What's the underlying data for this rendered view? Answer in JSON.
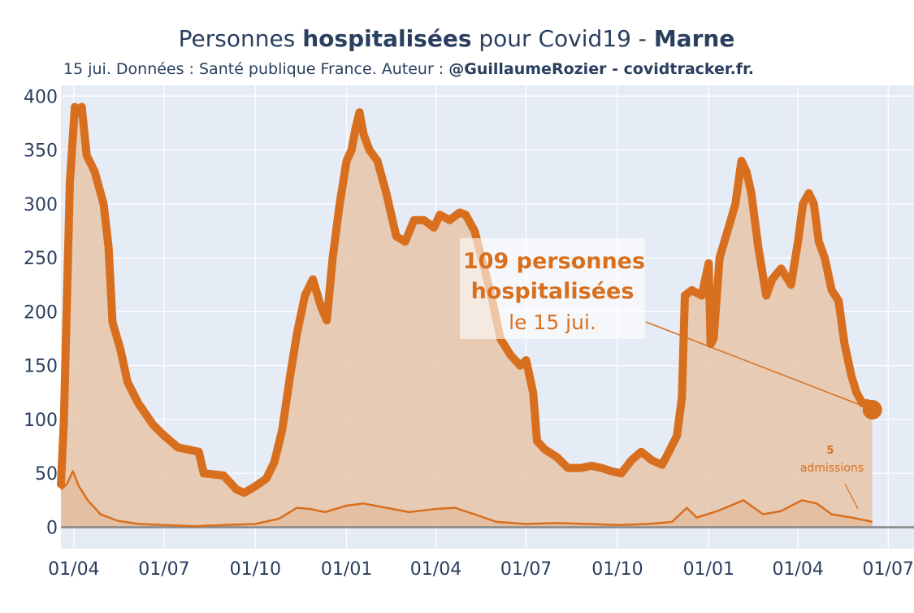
{
  "title": {
    "prefix": "Personnes ",
    "bold": "hospitalisées",
    "middle": " pour Covid19 - ",
    "region": "Marne"
  },
  "subtitle": {
    "text": "15 jui. Données : Santé publique France. Auteur : ",
    "author": "@GuillaumeRozier - covidtracker.fr."
  },
  "colors": {
    "accent": "#d86f1e",
    "fill": "#e8c5a8",
    "plot_bg": "#e5ecf6",
    "grid": "#ffffff",
    "axis_text": "#2a3f5f",
    "annotation_bg": "#ffffff"
  },
  "annotation_main": {
    "line1": "109 personnes",
    "line2": "hospitalisées",
    "line3": "le 15 jui."
  },
  "annotation_small": {
    "line1": "5",
    "line2": "admissions"
  },
  "chart_data": {
    "type": "area",
    "title": "Personnes hospitalisées pour Covid19 - Marne",
    "x_tick_labels": [
      "01/04",
      "01/07",
      "01/10",
      "01/01",
      "01/04",
      "01/07",
      "01/10",
      "01/01",
      "01/04",
      "01/07"
    ],
    "x_tick_dates": [
      "2020-04-01",
      "2020-07-01",
      "2020-10-01",
      "2021-01-01",
      "2021-04-01",
      "2021-07-01",
      "2021-10-01",
      "2022-01-01",
      "2022-04-01",
      "2022-07-01"
    ],
    "xlim": [
      "2020-03-19",
      "2022-07-27"
    ],
    "ylim": [
      -20,
      410
    ],
    "y_ticks": [
      0,
      50,
      100,
      150,
      200,
      250,
      300,
      350,
      400
    ],
    "grid": true,
    "series": [
      {
        "role": "hospitalisations",
        "points": [
          [
            "2020-03-19",
            40
          ],
          [
            "2020-03-22",
            100
          ],
          [
            "2020-03-28",
            320
          ],
          [
            "2020-04-02",
            390
          ],
          [
            "2020-04-05",
            385
          ],
          [
            "2020-04-09",
            390
          ],
          [
            "2020-04-14",
            345
          ],
          [
            "2020-04-22",
            330
          ],
          [
            "2020-05-01",
            300
          ],
          [
            "2020-05-06",
            260
          ],
          [
            "2020-05-10",
            190
          ],
          [
            "2020-05-18",
            165
          ],
          [
            "2020-05-25",
            135
          ],
          [
            "2020-06-05",
            115
          ],
          [
            "2020-06-20",
            95
          ],
          [
            "2020-07-01",
            85
          ],
          [
            "2020-07-15",
            74
          ],
          [
            "2020-08-05",
            70
          ],
          [
            "2020-08-10",
            50
          ],
          [
            "2020-08-30",
            48
          ],
          [
            "2020-09-12",
            35
          ],
          [
            "2020-09-20",
            32
          ],
          [
            "2020-10-01",
            38
          ],
          [
            "2020-10-12",
            45
          ],
          [
            "2020-10-20",
            60
          ],
          [
            "2020-10-28",
            90
          ],
          [
            "2020-11-05",
            140
          ],
          [
            "2020-11-12",
            180
          ],
          [
            "2020-11-20",
            215
          ],
          [
            "2020-11-28",
            230
          ],
          [
            "2020-12-06",
            205
          ],
          [
            "2020-12-12",
            192
          ],
          [
            "2020-12-18",
            250
          ],
          [
            "2020-12-25",
            300
          ],
          [
            "2021-01-01",
            340
          ],
          [
            "2021-01-06",
            350
          ],
          [
            "2021-01-10",
            370
          ],
          [
            "2021-01-14",
            385
          ],
          [
            "2021-01-18",
            365
          ],
          [
            "2021-01-24",
            350
          ],
          [
            "2021-02-01",
            340
          ],
          [
            "2021-02-10",
            310
          ],
          [
            "2021-02-20",
            270
          ],
          [
            "2021-03-01",
            265
          ],
          [
            "2021-03-10",
            285
          ],
          [
            "2021-03-20",
            285
          ],
          [
            "2021-03-30",
            278
          ],
          [
            "2021-04-05",
            290
          ],
          [
            "2021-04-15",
            285
          ],
          [
            "2021-04-25",
            292
          ],
          [
            "2021-05-01",
            290
          ],
          [
            "2021-05-10",
            275
          ],
          [
            "2021-05-20",
            240
          ],
          [
            "2021-05-28",
            210
          ],
          [
            "2021-06-05",
            175
          ],
          [
            "2021-06-15",
            160
          ],
          [
            "2021-06-25",
            150
          ],
          [
            "2021-07-01",
            155
          ],
          [
            "2021-07-08",
            125
          ],
          [
            "2021-07-12",
            80
          ],
          [
            "2021-07-20",
            72
          ],
          [
            "2021-08-01",
            65
          ],
          [
            "2021-08-12",
            55
          ],
          [
            "2021-08-25",
            55
          ],
          [
            "2021-09-05",
            57
          ],
          [
            "2021-09-15",
            55
          ],
          [
            "2021-09-25",
            52
          ],
          [
            "2021-10-05",
            50
          ],
          [
            "2021-10-15",
            62
          ],
          [
            "2021-10-25",
            70
          ],
          [
            "2021-11-05",
            62
          ],
          [
            "2021-11-15",
            58
          ],
          [
            "2021-11-22",
            70
          ],
          [
            "2021-11-30",
            85
          ],
          [
            "2021-12-05",
            120
          ],
          [
            "2021-12-08",
            215
          ],
          [
            "2021-12-15",
            220
          ],
          [
            "2021-12-25",
            215
          ],
          [
            "2022-01-01",
            245
          ],
          [
            "2022-01-03",
            170
          ],
          [
            "2022-01-06",
            175
          ],
          [
            "2022-01-12",
            250
          ],
          [
            "2022-01-20",
            275
          ],
          [
            "2022-01-28",
            300
          ],
          [
            "2022-02-03",
            340
          ],
          [
            "2022-02-08",
            330
          ],
          [
            "2022-02-13",
            310
          ],
          [
            "2022-02-20",
            260
          ],
          [
            "2022-02-28",
            215
          ],
          [
            "2022-03-06",
            230
          ],
          [
            "2022-03-15",
            240
          ],
          [
            "2022-03-25",
            225
          ],
          [
            "2022-04-01",
            265
          ],
          [
            "2022-04-06",
            300
          ],
          [
            "2022-04-12",
            310
          ],
          [
            "2022-04-17",
            300
          ],
          [
            "2022-04-22",
            265
          ],
          [
            "2022-04-28",
            250
          ],
          [
            "2022-05-05",
            220
          ],
          [
            "2022-05-12",
            210
          ],
          [
            "2022-05-18",
            170
          ],
          [
            "2022-05-25",
            140
          ],
          [
            "2022-05-30",
            125
          ],
          [
            "2022-06-05",
            115
          ],
          [
            "2022-06-10",
            115
          ],
          [
            "2022-06-15",
            109
          ]
        ]
      },
      {
        "role": "admissions",
        "points": [
          [
            "2020-03-19",
            35
          ],
          [
            "2020-03-25",
            40
          ],
          [
            "2020-03-31",
            52
          ],
          [
            "2020-04-06",
            38
          ],
          [
            "2020-04-15",
            25
          ],
          [
            "2020-04-28",
            12
          ],
          [
            "2020-05-15",
            6
          ],
          [
            "2020-06-05",
            3
          ],
          [
            "2020-07-01",
            2
          ],
          [
            "2020-08-01",
            1
          ],
          [
            "2020-09-01",
            2
          ],
          [
            "2020-10-01",
            3
          ],
          [
            "2020-10-25",
            8
          ],
          [
            "2020-11-12",
            18
          ],
          [
            "2020-11-25",
            17
          ],
          [
            "2020-12-10",
            14
          ],
          [
            "2021-01-01",
            20
          ],
          [
            "2021-01-18",
            22
          ],
          [
            "2021-02-10",
            18
          ],
          [
            "2021-03-05",
            14
          ],
          [
            "2021-04-01",
            17
          ],
          [
            "2021-04-20",
            18
          ],
          [
            "2021-05-10",
            12
          ],
          [
            "2021-06-01",
            5
          ],
          [
            "2021-07-01",
            3
          ],
          [
            "2021-08-01",
            4
          ],
          [
            "2021-09-01",
            3
          ],
          [
            "2021-10-01",
            2
          ],
          [
            "2021-11-01",
            3
          ],
          [
            "2021-11-25",
            5
          ],
          [
            "2021-12-10",
            18
          ],
          [
            "2021-12-20",
            9
          ],
          [
            "2022-01-10",
            15
          ],
          [
            "2022-02-05",
            25
          ],
          [
            "2022-02-25",
            12
          ],
          [
            "2022-03-15",
            15
          ],
          [
            "2022-04-05",
            25
          ],
          [
            "2022-04-20",
            22
          ],
          [
            "2022-05-05",
            12
          ],
          [
            "2022-05-25",
            9
          ],
          [
            "2022-06-10",
            6
          ],
          [
            "2022-06-15",
            5
          ]
        ]
      }
    ],
    "last_point": {
      "x": "2022-06-15",
      "y": 109
    }
  }
}
